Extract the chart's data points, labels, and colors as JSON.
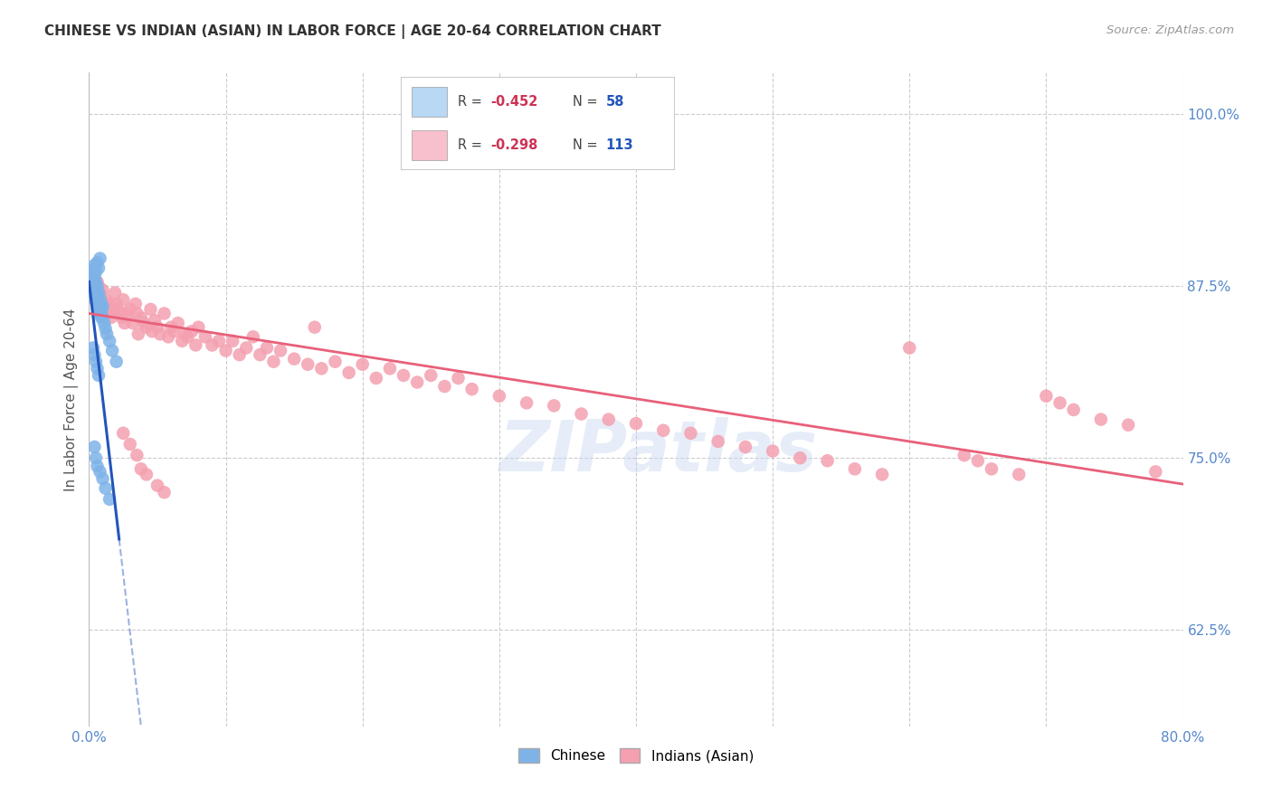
{
  "title": "CHINESE VS INDIAN (ASIAN) IN LABOR FORCE | AGE 20-64 CORRELATION CHART",
  "source": "Source: ZipAtlas.com",
  "ylabel": "In Labor Force | Age 20-64",
  "xlim": [
    0.0,
    0.8
  ],
  "ylim": [
    0.555,
    1.03
  ],
  "xticks": [
    0.0,
    0.1,
    0.2,
    0.3,
    0.4,
    0.5,
    0.6,
    0.7,
    0.8
  ],
  "xticklabels": [
    "0.0%",
    "",
    "",
    "",
    "",
    "",
    "",
    "",
    "80.0%"
  ],
  "yticks": [
    0.625,
    0.75,
    0.875,
    1.0
  ],
  "yticklabels": [
    "62.5%",
    "75.0%",
    "87.5%",
    "100.0%"
  ],
  "chinese_color": "#7EB3E8",
  "indian_color": "#F4A0B0",
  "chinese_line_color": "#2255BB",
  "indian_line_color": "#E8607A",
  "background_color": "#FFFFFF",
  "grid_color": "#CCCCCC",
  "title_color": "#333333",
  "axis_label_color": "#555555",
  "tick_label_color_y": "#5588CC",
  "tick_label_color_x": "#5588CC",
  "legend_R_color": "#CC3355",
  "legend_N_color": "#2255BB",
  "legend_box_color_chinese": "#B8D8F4",
  "legend_box_color_indian": "#F8C0CC",
  "watermark": "ZIPatlas",
  "chinese_x": [
    0.001,
    0.001,
    0.002,
    0.002,
    0.002,
    0.003,
    0.003,
    0.003,
    0.003,
    0.003,
    0.004,
    0.004,
    0.004,
    0.004,
    0.004,
    0.005,
    0.005,
    0.005,
    0.005,
    0.005,
    0.006,
    0.006,
    0.006,
    0.006,
    0.007,
    0.007,
    0.007,
    0.008,
    0.008,
    0.008,
    0.009,
    0.009,
    0.01,
    0.01,
    0.011,
    0.012,
    0.013,
    0.015,
    0.017,
    0.02,
    0.003,
    0.004,
    0.005,
    0.006,
    0.007,
    0.004,
    0.005,
    0.006,
    0.008,
    0.01,
    0.012,
    0.015,
    0.008,
    0.006,
    0.007,
    0.004,
    0.005,
    0.009
  ],
  "chinese_y": [
    0.886,
    0.882,
    0.878,
    0.884,
    0.88,
    0.876,
    0.882,
    0.878,
    0.875,
    0.872,
    0.88,
    0.874,
    0.87,
    0.876,
    0.868,
    0.878,
    0.872,
    0.868,
    0.864,
    0.875,
    0.866,
    0.862,
    0.87,
    0.875,
    0.864,
    0.858,
    0.87,
    0.86,
    0.866,
    0.855,
    0.856,
    0.862,
    0.852,
    0.86,
    0.848,
    0.844,
    0.84,
    0.835,
    0.828,
    0.82,
    0.83,
    0.825,
    0.82,
    0.815,
    0.81,
    0.758,
    0.75,
    0.744,
    0.74,
    0.735,
    0.728,
    0.72,
    0.895,
    0.892,
    0.888,
    0.89,
    0.885,
    0.852
  ],
  "indian_x": [
    0.002,
    0.003,
    0.004,
    0.005,
    0.006,
    0.006,
    0.007,
    0.007,
    0.008,
    0.008,
    0.009,
    0.01,
    0.01,
    0.011,
    0.012,
    0.013,
    0.014,
    0.015,
    0.015,
    0.016,
    0.018,
    0.019,
    0.02,
    0.021,
    0.022,
    0.024,
    0.025,
    0.026,
    0.028,
    0.03,
    0.032,
    0.034,
    0.035,
    0.036,
    0.038,
    0.04,
    0.042,
    0.045,
    0.046,
    0.048,
    0.05,
    0.052,
    0.055,
    0.058,
    0.06,
    0.062,
    0.065,
    0.068,
    0.07,
    0.072,
    0.075,
    0.078,
    0.08,
    0.085,
    0.09,
    0.095,
    0.1,
    0.105,
    0.11,
    0.115,
    0.12,
    0.125,
    0.13,
    0.135,
    0.14,
    0.15,
    0.16,
    0.165,
    0.17,
    0.18,
    0.19,
    0.2,
    0.21,
    0.22,
    0.23,
    0.24,
    0.25,
    0.26,
    0.27,
    0.28,
    0.3,
    0.32,
    0.34,
    0.36,
    0.38,
    0.4,
    0.42,
    0.44,
    0.46,
    0.48,
    0.5,
    0.52,
    0.54,
    0.56,
    0.58,
    0.6,
    0.64,
    0.65,
    0.66,
    0.68,
    0.7,
    0.71,
    0.72,
    0.74,
    0.76,
    0.78,
    0.05,
    0.055,
    0.038,
    0.042,
    0.03,
    0.025,
    0.035
  ],
  "indian_y": [
    0.878,
    0.88,
    0.872,
    0.868,
    0.878,
    0.862,
    0.875,
    0.858,
    0.87,
    0.855,
    0.865,
    0.862,
    0.872,
    0.858,
    0.865,
    0.855,
    0.86,
    0.862,
    0.855,
    0.852,
    0.858,
    0.87,
    0.862,
    0.858,
    0.855,
    0.852,
    0.865,
    0.848,
    0.855,
    0.858,
    0.848,
    0.862,
    0.855,
    0.84,
    0.852,
    0.848,
    0.845,
    0.858,
    0.842,
    0.85,
    0.845,
    0.84,
    0.855,
    0.838,
    0.845,
    0.842,
    0.848,
    0.835,
    0.84,
    0.838,
    0.842,
    0.832,
    0.845,
    0.838,
    0.832,
    0.835,
    0.828,
    0.835,
    0.825,
    0.83,
    0.838,
    0.825,
    0.83,
    0.82,
    0.828,
    0.822,
    0.818,
    0.845,
    0.815,
    0.82,
    0.812,
    0.818,
    0.808,
    0.815,
    0.81,
    0.805,
    0.81,
    0.802,
    0.808,
    0.8,
    0.795,
    0.79,
    0.788,
    0.782,
    0.778,
    0.775,
    0.77,
    0.768,
    0.762,
    0.758,
    0.755,
    0.75,
    0.748,
    0.742,
    0.738,
    0.83,
    0.752,
    0.748,
    0.742,
    0.738,
    0.795,
    0.79,
    0.785,
    0.778,
    0.774,
    0.74,
    0.73,
    0.725,
    0.742,
    0.738,
    0.76,
    0.768,
    0.752
  ],
  "chinese_R": -0.452,
  "chinese_N": 58,
  "indian_R": -0.298,
  "indian_N": 113,
  "chinese_line_intercept": 0.878,
  "chinese_line_slope": -8.5,
  "indian_line_intercept": 0.855,
  "indian_line_slope": -0.155
}
